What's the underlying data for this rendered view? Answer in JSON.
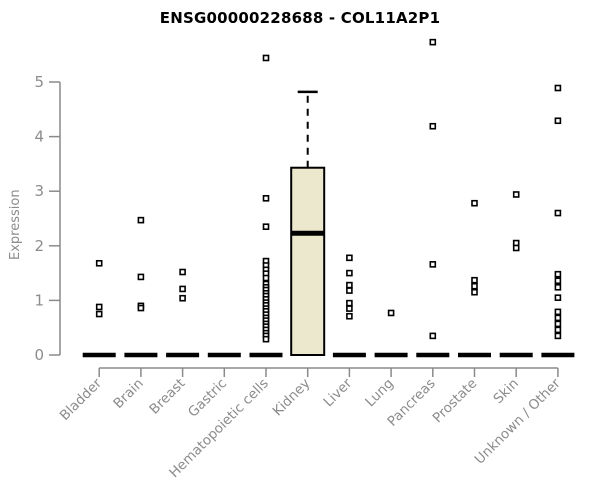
{
  "chart_data": {
    "type": "boxplot",
    "title": "ENSG00000228688 - COL11A2P1",
    "ylabel": "Expression",
    "ylim": [
      0,
      5
    ],
    "yticks": [
      0,
      1,
      2,
      3,
      4,
      5
    ],
    "grid": false,
    "legend": "none",
    "categories": [
      "Bladder",
      "Brain",
      "Breast",
      "Gastric",
      "Hematopoietic cells",
      "Kidney",
      "Liver",
      "Lung",
      "Pancreas",
      "Prostate",
      "Skin",
      "Unknown / Other"
    ],
    "series": [
      {
        "category": "Bladder",
        "box": {
          "min": 0,
          "q1": 0,
          "median": 0,
          "q3": 0,
          "max": 0
        },
        "points": [
          1.68,
          0.88,
          0.75
        ]
      },
      {
        "category": "Brain",
        "box": {
          "min": 0,
          "q1": 0,
          "median": 0,
          "q3": 0,
          "max": 0
        },
        "points": [
          2.47,
          1.43,
          0.9,
          0.86
        ]
      },
      {
        "category": "Breast",
        "box": {
          "min": 0,
          "q1": 0,
          "median": 0,
          "q3": 0,
          "max": 0
        },
        "points": [
          1.52,
          1.21,
          1.04
        ]
      },
      {
        "category": "Gastric",
        "box": {
          "min": 0,
          "q1": 0,
          "median": 0,
          "q3": 0,
          "max": 0
        },
        "points": []
      },
      {
        "category": "Hematopoietic cells",
        "box": {
          "min": 0,
          "q1": 0,
          "median": 0,
          "q3": 0,
          "max": 0
        },
        "points": [
          5.44,
          2.87,
          2.35,
          1.72,
          1.64,
          1.56,
          1.49,
          1.41,
          1.3,
          1.24,
          1.19,
          1.13,
          1.08,
          1.02,
          0.96,
          0.91,
          0.85,
          0.8,
          0.74,
          0.68,
          0.63,
          0.57,
          0.52,
          0.46,
          0.4,
          0.35,
          0.29
        ]
      },
      {
        "category": "Kidney",
        "box": {
          "min": 0,
          "q1": 0,
          "median": 2.23,
          "q3": 3.43,
          "max": 4.82
        },
        "points": []
      },
      {
        "category": "Liver",
        "box": {
          "min": 0,
          "q1": 0,
          "median": 0,
          "q3": 0,
          "max": 0
        },
        "points": [
          1.78,
          1.5,
          1.28,
          1.18,
          0.95,
          0.85,
          0.71
        ]
      },
      {
        "category": "Lung",
        "box": {
          "min": 0,
          "q1": 0,
          "median": 0,
          "q3": 0,
          "max": 0
        },
        "points": [
          0.77
        ]
      },
      {
        "category": "Pancreas",
        "box": {
          "min": 0,
          "q1": 0,
          "median": 0,
          "q3": 0,
          "max": 0
        },
        "points": [
          5.73,
          4.19,
          1.66,
          0.35
        ]
      },
      {
        "category": "Prostate",
        "box": {
          "min": 0,
          "q1": 0,
          "median": 0,
          "q3": 0,
          "max": 0
        },
        "points": [
          2.78,
          1.37,
          1.26,
          1.15
        ]
      },
      {
        "category": "Skin",
        "box": {
          "min": 0,
          "q1": 0,
          "median": 0,
          "q3": 0,
          "max": 0
        },
        "points": [
          2.94,
          2.05,
          1.96
        ]
      },
      {
        "category": "Unknown / Other",
        "box": {
          "min": 0,
          "q1": 0,
          "median": 0,
          "q3": 0,
          "max": 0
        },
        "points": [
          4.89,
          4.29,
          2.6,
          1.48,
          1.36,
          1.24,
          1.05,
          0.79,
          0.68,
          0.57,
          0.46,
          0.35
        ]
      }
    ],
    "colors": {
      "background": "#ffffff",
      "box_fill": "#ece8cd",
      "box_border": "#000000",
      "median": "#000000",
      "point": "#000000",
      "point_fill": "#ffffff",
      "axis_line": "#8a8a8a",
      "axis_label": "#8c8c8c",
      "title": "#000000"
    }
  }
}
